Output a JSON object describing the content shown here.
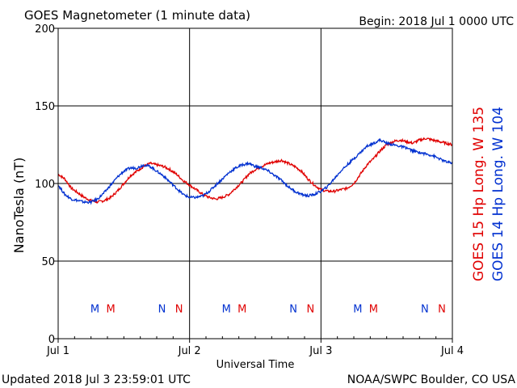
{
  "header": {
    "title": "GOES Magnetometer (1 minute data)",
    "begin": "Begin:  2018 Jul 1 0000 UTC"
  },
  "footer": {
    "updated": "Updated 2018 Jul  3 23:59:01 UTC",
    "credit": "NOAA/SWPC Boulder, CO USA"
  },
  "colors": {
    "goes15": "#e00000",
    "goes14": "#0030d0",
    "grid": "#000000"
  },
  "chart_data": {
    "type": "line",
    "title": "GOES Magnetometer (1 minute data)",
    "xlabel": "Universal Time",
    "ylabel": "NanoTesla (nT)",
    "ylim": [
      0,
      200
    ],
    "yticks": [
      0,
      50,
      100,
      150,
      200
    ],
    "xlim": [
      0,
      3
    ],
    "xticks": [
      0,
      1,
      2,
      3
    ],
    "xtick_labels": [
      "Jul 1",
      "Jul 2",
      "Jul 3",
      "Jul 4"
    ],
    "grid": true,
    "legend_position": "right-vertical",
    "series": [
      {
        "name": "GOES 15 Hp  Long. W 135",
        "color": "#e00000",
        "x": [
          0,
          0.05,
          0.1,
          0.15,
          0.2,
          0.25,
          0.3,
          0.35,
          0.4,
          0.45,
          0.5,
          0.55,
          0.6,
          0.65,
          0.7,
          0.75,
          0.8,
          0.85,
          0.9,
          0.95,
          1.0,
          1.05,
          1.1,
          1.15,
          1.2,
          1.25,
          1.3,
          1.35,
          1.4,
          1.45,
          1.5,
          1.55,
          1.6,
          1.65,
          1.7,
          1.75,
          1.8,
          1.85,
          1.9,
          1.95,
          2.0,
          2.05,
          2.1,
          2.15,
          2.2,
          2.25,
          2.3,
          2.35,
          2.4,
          2.45,
          2.5,
          2.55,
          2.6,
          2.65,
          2.7,
          2.75,
          2.8,
          2.85,
          2.9,
          2.95,
          3.0
        ],
        "y": [
          106,
          103,
          97,
          94,
          91,
          89,
          88,
          89,
          91,
          95,
          100,
          105,
          108,
          111,
          113,
          112,
          111,
          109,
          106,
          102,
          99,
          96,
          93,
          91,
          90,
          91,
          93,
          97,
          101,
          106,
          109,
          111,
          113,
          114,
          115,
          113,
          111,
          108,
          103,
          99,
          96,
          95,
          95,
          96,
          97,
          100,
          106,
          112,
          116,
          121,
          125,
          127,
          128,
          127,
          126,
          128,
          129,
          128,
          127,
          126,
          125
        ]
      },
      {
        "name": "GOES 14 Hp  Long. W 104",
        "color": "#0030d0",
        "x": [
          0,
          0.05,
          0.1,
          0.15,
          0.2,
          0.25,
          0.3,
          0.35,
          0.4,
          0.45,
          0.5,
          0.55,
          0.6,
          0.65,
          0.7,
          0.75,
          0.8,
          0.85,
          0.9,
          0.95,
          1.0,
          1.05,
          1.1,
          1.15,
          1.2,
          1.25,
          1.3,
          1.35,
          1.4,
          1.45,
          1.5,
          1.55,
          1.6,
          1.65,
          1.7,
          1.75,
          1.8,
          1.85,
          1.9,
          1.95,
          2.0,
          2.05,
          2.1,
          2.15,
          2.2,
          2.25,
          2.3,
          2.35,
          2.4,
          2.45,
          2.5,
          2.55,
          2.6,
          2.65,
          2.7,
          2.75,
          2.8,
          2.85,
          2.9,
          2.95,
          3.0
        ],
        "y": [
          99,
          93,
          90,
          89,
          88,
          88,
          90,
          94,
          99,
          104,
          108,
          110,
          110,
          112,
          111,
          108,
          105,
          101,
          97,
          93,
          91,
          91,
          92,
          95,
          99,
          103,
          107,
          110,
          112,
          113,
          111,
          110,
          108,
          105,
          102,
          98,
          95,
          93,
          92,
          93,
          95,
          98,
          103,
          108,
          112,
          116,
          120,
          124,
          126,
          128,
          126,
          125,
          124,
          123,
          121,
          120,
          119,
          118,
          116,
          114,
          113
        ]
      }
    ],
    "event_markers": [
      {
        "label": "M",
        "x": 0.28,
        "color": "#0030d0"
      },
      {
        "label": "M",
        "x": 0.4,
        "color": "#e00000"
      },
      {
        "label": "N",
        "x": 0.79,
        "color": "#0030d0"
      },
      {
        "label": "N",
        "x": 0.92,
        "color": "#e00000"
      },
      {
        "label": "M",
        "x": 1.28,
        "color": "#0030d0"
      },
      {
        "label": "M",
        "x": 1.4,
        "color": "#e00000"
      },
      {
        "label": "N",
        "x": 1.79,
        "color": "#0030d0"
      },
      {
        "label": "N",
        "x": 1.92,
        "color": "#e00000"
      },
      {
        "label": "M",
        "x": 2.28,
        "color": "#0030d0"
      },
      {
        "label": "M",
        "x": 2.4,
        "color": "#e00000"
      },
      {
        "label": "N",
        "x": 2.79,
        "color": "#0030d0"
      },
      {
        "label": "N",
        "x": 2.92,
        "color": "#e00000"
      }
    ],
    "event_marker_y": 17
  }
}
